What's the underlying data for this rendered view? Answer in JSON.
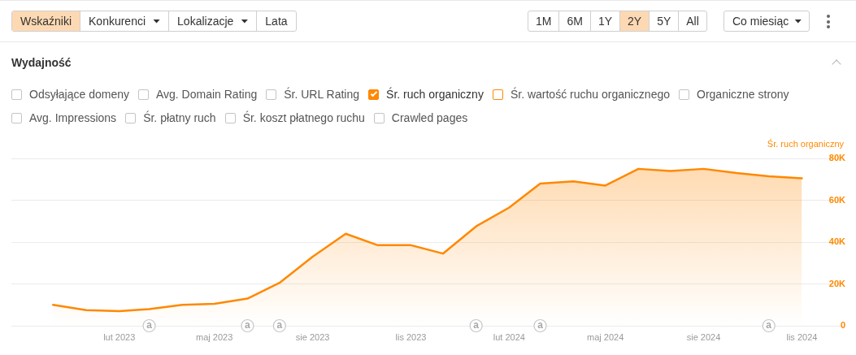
{
  "chart_data": {
    "type": "area",
    "title": "Wydajność",
    "ylabel": "Śr. ruch organiczny",
    "x": [
      "2022-12",
      "2023-01",
      "2023-02",
      "2023-03",
      "2023-04",
      "2023-05",
      "2023-06",
      "2023-07",
      "2023-08",
      "2023-09",
      "2023-10",
      "2023-11",
      "2023-12",
      "2024-01",
      "2024-02",
      "2024-03",
      "2024-04",
      "2024-05",
      "2024-06",
      "2024-07",
      "2024-08",
      "2024-09",
      "2024-10",
      "2024-11"
    ],
    "values": [
      10000,
      7500,
      7000,
      8000,
      10000,
      10500,
      13000,
      20500,
      33000,
      44000,
      38500,
      38500,
      34500,
      47500,
      56500,
      68000,
      69000,
      67000,
      75000,
      74000,
      75000,
      73000,
      71500,
      70500
    ],
    "color": "#ff8800",
    "xlim": [
      "2022-10-23",
      "2024-12-11"
    ],
    "xticks": [
      {
        "value": "2023-02",
        "label": "lut 2023"
      },
      {
        "value": "2023-05",
        "label": "maj 2023"
      },
      {
        "value": "2023-08",
        "label": "sie 2023"
      },
      {
        "value": "2023-11",
        "label": "lis 2023"
      },
      {
        "value": "2024-02",
        "label": "lut 2024"
      },
      {
        "value": "2024-05",
        "label": "maj 2024"
      },
      {
        "value": "2024-08",
        "label": "sie 2024"
      },
      {
        "value": "2024-11",
        "label": "lis 2024"
      }
    ],
    "ylim": [
      0,
      80000
    ],
    "yticks": [
      0,
      {
        "value": 20000,
        "label": "20K"
      },
      {
        "value": 40000,
        "label": "40K"
      },
      {
        "value": 60000,
        "label": "60K"
      },
      {
        "value": 80000,
        "label": "80K"
      }
    ],
    "grid": "y",
    "annotations": [
      "Wskaźniki",
      "Konkurenci",
      "Lokalizacje",
      "Lata",
      "1M",
      "6M",
      "1Y",
      "2Y",
      "5Y",
      "All",
      "Co miesiąc",
      "Odsyłające domeny",
      "Avg. Domain Rating",
      "Śr. URL Rating",
      "Śr. ruch organiczny",
      "Śr. wartość ruchu organicznego",
      "Organiczne strony",
      "Avg. Impressions",
      "Śr. płatny ruch",
      "Śr. koszt płatnego ruchu",
      "Crawled pages",
      {
        "text": "a",
        "x": "2023-03",
        "y": 0
      },
      {
        "text": "a",
        "x": "2023-06",
        "y": 0
      },
      {
        "text": "a",
        "x": "2023-07",
        "y": 0
      },
      {
        "text": "a",
        "x": "2024-01",
        "y": 0
      },
      {
        "text": "a",
        "x": "2024-03",
        "y": 0
      },
      {
        "text": "a",
        "x": "2024-10",
        "y": 0
      }
    ]
  }
}
